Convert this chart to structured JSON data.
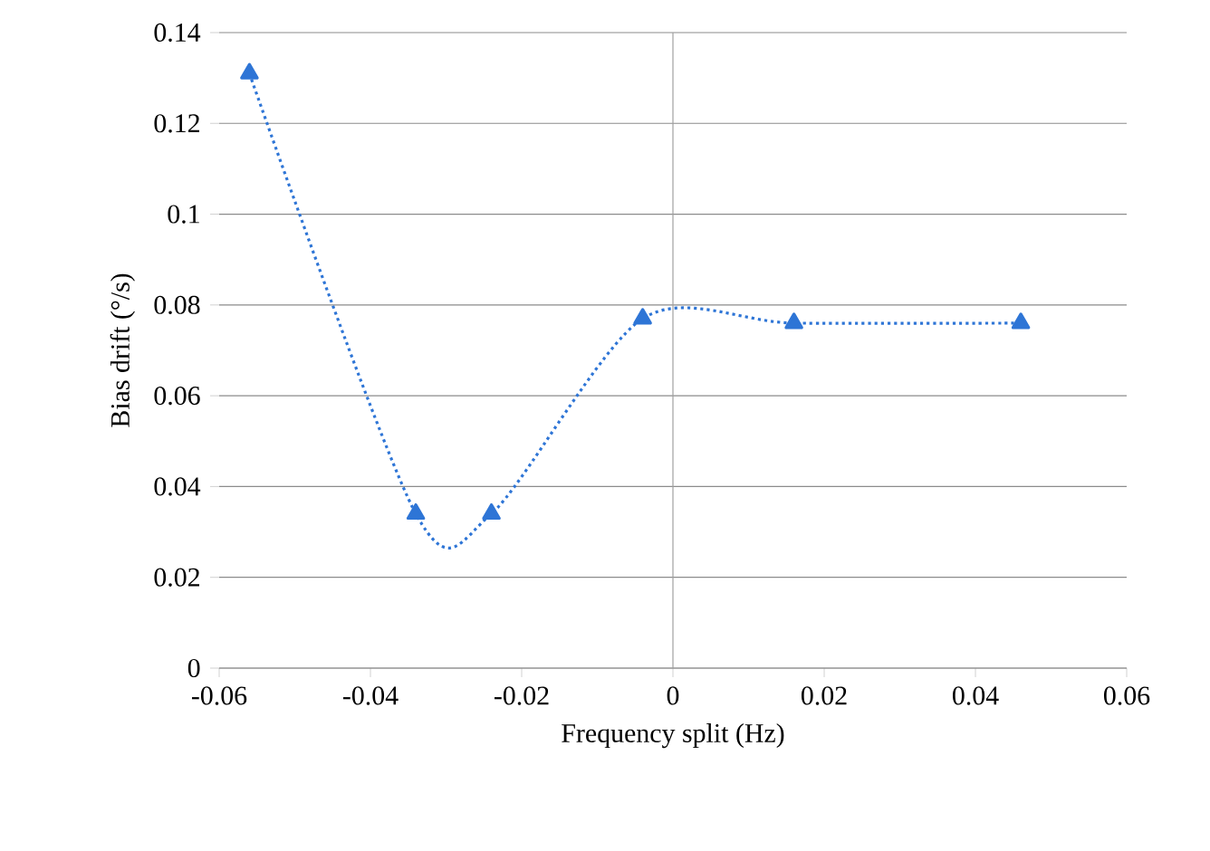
{
  "chart_data": {
    "type": "line",
    "xlabel": "Frequency split (Hz)",
    "ylabel": "Bias drift (°/s)",
    "x": [
      -0.056,
      -0.034,
      -0.024,
      -0.004,
      0.016,
      0.046
    ],
    "series": [
      {
        "color": "#2e75d6",
        "values": [
          0.131,
          0.034,
          0.034,
          0.077,
          0.076,
          0.076
        ]
      }
    ],
    "xlim": [
      -0.06,
      0.06
    ],
    "ylim": [
      0,
      0.14
    ],
    "xticks": [
      -0.06,
      -0.04,
      -0.02,
      0,
      0.02,
      0.04,
      0.06
    ],
    "yticks": [
      0,
      0.02,
      0.04,
      0.06,
      0.08,
      0.1,
      0.12,
      0.14
    ],
    "grid": "y",
    "marker": "triangle",
    "line_style": "dotted",
    "ref_lines": [
      {
        "axis": "x",
        "value": 0,
        "color": "#a0a0a0"
      }
    ]
  }
}
